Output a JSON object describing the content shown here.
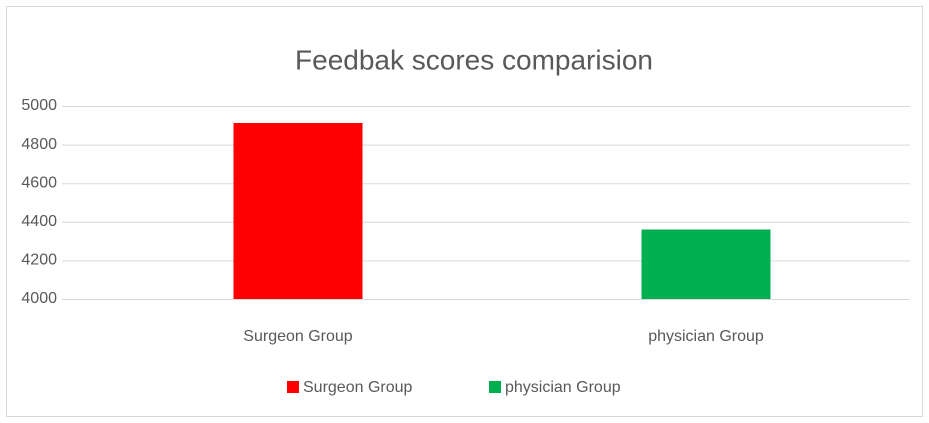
{
  "chart_data": {
    "type": "bar",
    "title": "Feedbak scores comparision",
    "categories": [
      "Surgeon Group",
      "physician Group"
    ],
    "values": [
      4912,
      4360
    ],
    "colors": [
      "#ff0000",
      "#00b050"
    ],
    "ylim": [
      4000,
      5000
    ],
    "yticks": [
      4000,
      4200,
      4400,
      4600,
      4800,
      5000
    ],
    "grid": true,
    "legend": "bottom"
  }
}
